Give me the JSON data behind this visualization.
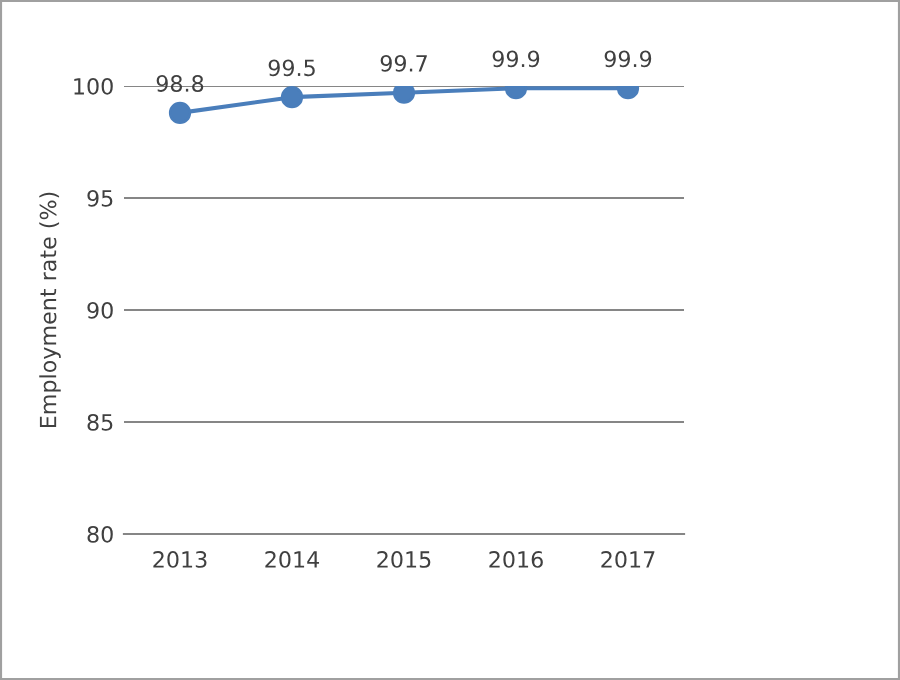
{
  "chart_data": {
    "type": "line",
    "ylabel": "Employment rate (%)",
    "categories": [
      "2013",
      "2014",
      "2015",
      "2016",
      "2017"
    ],
    "series": [
      {
        "color": "#4a7ebb",
        "values": [
          98.8,
          99.5,
          99.7,
          99.9,
          99.9
        ]
      }
    ],
    "ylim": [
      80,
      100
    ],
    "yticks": [
      80,
      85,
      90,
      95,
      100
    ],
    "grid": "y",
    "marker": "circle",
    "line_style": "solid",
    "data_labels": true
  }
}
